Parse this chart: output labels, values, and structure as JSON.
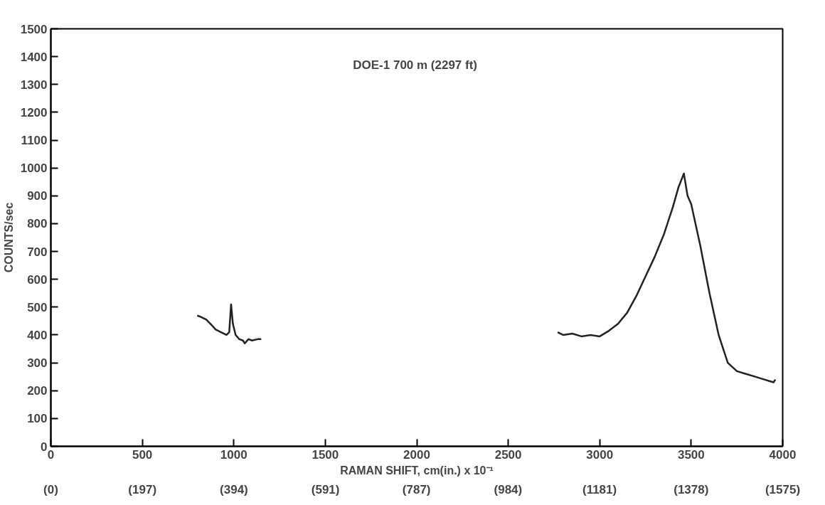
{
  "chart_data": {
    "type": "line",
    "title": "DOE-1  700 m (2297 ft)",
    "xlabel": "RAMAN SHIFT, cm(in.) x 10⁻¹",
    "ylabel": "COUNTS/sec",
    "xlim": [
      0,
      4000
    ],
    "ylim": [
      0,
      1500
    ],
    "xticks": [
      0,
      500,
      1000,
      1500,
      2000,
      2500,
      3000,
      3500,
      4000
    ],
    "x2lim": [
      0,
      1575
    ],
    "x2ticks": [
      {
        "value": 0,
        "label": "(0)"
      },
      {
        "value": 197,
        "label": "(197)"
      },
      {
        "value": 394,
        "label": "(394)"
      },
      {
        "value": 591,
        "label": "(591)"
      },
      {
        "value": 787,
        "label": "(787)"
      },
      {
        "value": 984,
        "label": "(984)"
      },
      {
        "value": 1181,
        "label": "(1181)"
      },
      {
        "value": 1378,
        "label": "(1378)"
      },
      {
        "value": 1575,
        "label": "(1575)"
      }
    ],
    "yticks": [
      0,
      100,
      200,
      300,
      400,
      500,
      600,
      700,
      800,
      900,
      1000,
      1100,
      1200,
      1300,
      1400,
      1500
    ],
    "grid": false,
    "marker": "none",
    "line_style": "solid",
    "series": [
      {
        "color": "#222222",
        "x": [
          800,
          820,
          850,
          880,
          900,
          930,
          960,
          975,
          985,
          995,
          1010,
          1030,
          1050,
          1060,
          1080,
          1100,
          1130,
          1150,
          2000,
          2770,
          2800,
          2850,
          2900,
          2950,
          3000,
          3050,
          3100,
          3150,
          3200,
          3250,
          3300,
          3350,
          3400,
          3430,
          3460,
          3480,
          3500,
          3550,
          3600,
          3650,
          3700,
          3750,
          3800,
          3850,
          3900,
          3950,
          3960
        ],
        "values": [
          470,
          465,
          455,
          435,
          420,
          410,
          400,
          410,
          510,
          440,
          400,
          385,
          380,
          370,
          385,
          380,
          385,
          385,
          null,
          410,
          400,
          405,
          395,
          400,
          395,
          415,
          440,
          480,
          540,
          610,
          680,
          760,
          860,
          930,
          980,
          900,
          870,
          720,
          550,
          400,
          300,
          270,
          260,
          250,
          240,
          230,
          240
        ]
      }
    ]
  }
}
